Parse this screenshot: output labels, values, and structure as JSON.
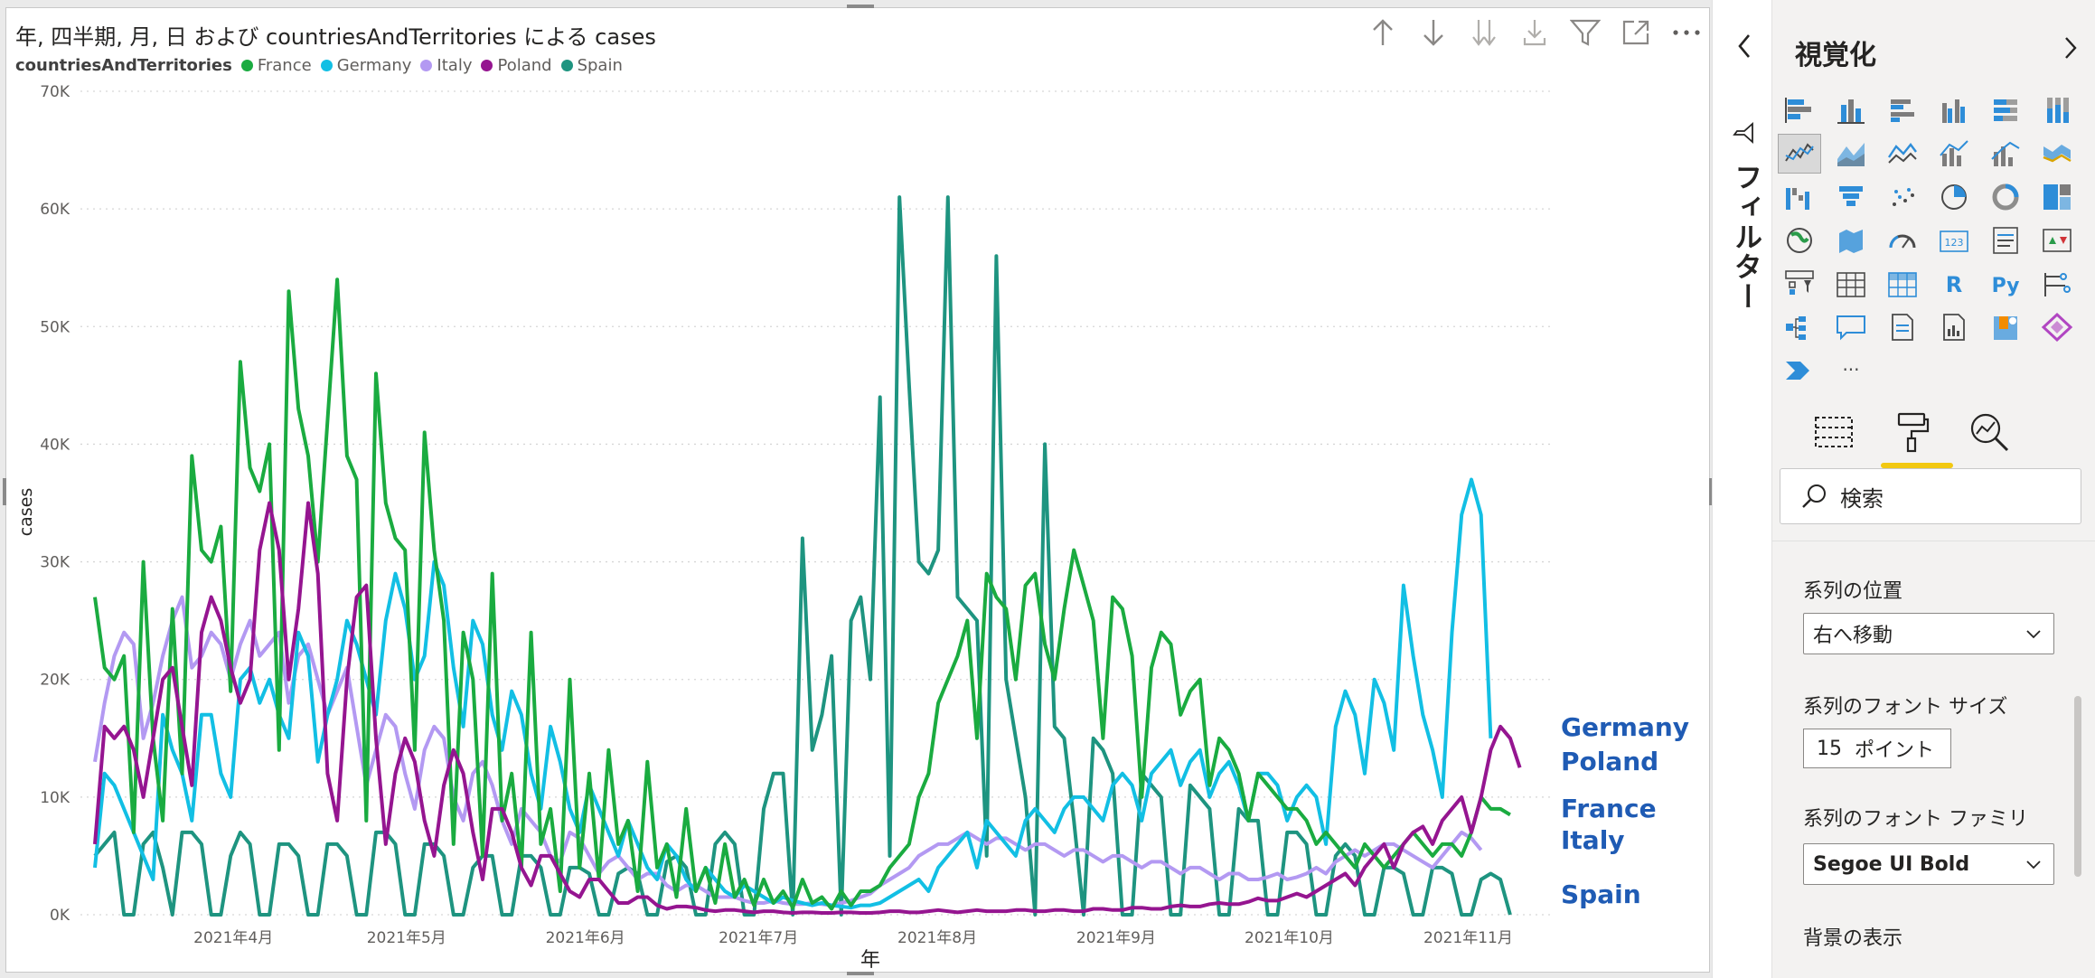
{
  "chart_data": {
    "type": "line",
    "title": "年, 四半期, 月, 日 および countriesAndTerritories による cases",
    "legend_title": "countriesAndTerritories",
    "xlabel": "年",
    "ylabel": "cases",
    "ylim": [
      0,
      70000
    ],
    "y_ticks": [
      "0K",
      "10K",
      "20K",
      "30K",
      "40K",
      "50K",
      "60K",
      "70K"
    ],
    "x_ticks": [
      "2021年4月",
      "2021年5月",
      "2021年6月",
      "2021年7月",
      "2021年8月",
      "2021年9月",
      "2021年10月",
      "2021年11月"
    ],
    "x_range": [
      "2021-03-08",
      "2021-11-13"
    ],
    "grid": true,
    "legend_position": "top-left",
    "series_labels_position": "right",
    "series": [
      {
        "name": "France",
        "color": "#1aab40",
        "x_start": "2021-03-08",
        "values": [
          27000,
          21000,
          20000,
          22000,
          7000,
          30000,
          15000,
          8000,
          26000,
          12000,
          39000,
          31000,
          30000,
          33000,
          19000,
          47000,
          38000,
          36000,
          40000,
          14000,
          53000,
          43000,
          39000,
          30000,
          42000,
          54000,
          39000,
          37000,
          8000,
          46000,
          35000,
          32000,
          31000,
          14000,
          41000,
          31000,
          25000,
          6000,
          24000,
          20000,
          5000,
          29000,
          8000,
          12000,
          4000,
          24000,
          6000,
          9000,
          2000,
          20000,
          4000,
          12000,
          3000,
          14000,
          6000,
          8000,
          2000,
          13000,
          4000,
          6000,
          1500,
          9000,
          2000,
          4000,
          1000,
          6000,
          1500,
          3000,
          800,
          3000,
          1000,
          2000,
          600,
          3000,
          1000,
          1500,
          500,
          2000,
          800,
          2000,
          2000,
          2500,
          4000,
          5000,
          6000,
          10000,
          12000,
          18000,
          20000,
          22000,
          25000,
          15000,
          29000,
          27000,
          26000,
          20000,
          28000,
          29000,
          23000,
          20000,
          26000,
          31000,
          28000,
          25000,
          15000,
          27000,
          26000,
          22000,
          10000,
          21000,
          24000,
          23000,
          17000,
          19000,
          20000,
          11000,
          15000,
          14000,
          12000,
          8000,
          12000,
          11000,
          10000,
          9000,
          9000,
          8000,
          6000,
          7000,
          6000,
          5000,
          4000,
          6000,
          5000,
          4000,
          5000,
          6000,
          7000,
          6000,
          5000,
          6000,
          6000,
          5000,
          7000,
          10000,
          9000,
          9000,
          8500
        ]
      },
      {
        "name": "Germany",
        "color": "#12bfe4",
        "x_start": "2021-03-08",
        "values": [
          4000,
          12000,
          11000,
          9000,
          7000,
          5000,
          3000,
          17000,
          14000,
          12000,
          8000,
          17000,
          17000,
          12000,
          10000,
          20000,
          21000,
          18000,
          20000,
          17000,
          15000,
          24000,
          22000,
          13000,
          17000,
          20000,
          25000,
          23000,
          20000,
          17000,
          25000,
          29000,
          26000,
          20000,
          22000,
          30000,
          28000,
          21000,
          16000,
          25000,
          23000,
          17000,
          14000,
          19000,
          17000,
          12000,
          9000,
          16000,
          13000,
          9000,
          7000,
          11000,
          9000,
          7000,
          5000,
          8000,
          6000,
          4000,
          3000,
          6000,
          5000,
          3000,
          2000,
          4000,
          3000,
          2000,
          1500,
          2500,
          2000,
          1500,
          1000,
          1500,
          1200,
          1000,
          800,
          1000,
          800,
          700,
          600,
          800,
          800,
          1000,
          1500,
          2000,
          2500,
          3000,
          2000,
          4000,
          5000,
          6000,
          7000,
          4000,
          8000,
          7000,
          6000,
          5000,
          8000,
          9000,
          8000,
          7000,
          9000,
          10000,
          10000,
          9000,
          8000,
          11000,
          12000,
          11000,
          8000,
          12000,
          13000,
          14000,
          11000,
          13000,
          14000,
          10000,
          12000,
          13000,
          11000,
          8000,
          12000,
          12000,
          11000,
          8000,
          10000,
          11000,
          10000,
          6000,
          16000,
          19000,
          17000,
          12000,
          20000,
          18000,
          14000,
          28000,
          22000,
          17000,
          14000,
          10000,
          24000,
          34000,
          37000,
          34000,
          15000
        ]
      },
      {
        "name": "Italy",
        "color": "#b399f2",
        "x_start": "2021-03-08",
        "values": [
          13000,
          18000,
          22000,
          24000,
          23000,
          15000,
          18000,
          22000,
          25000,
          27000,
          21000,
          22000,
          24000,
          23000,
          20000,
          23000,
          25000,
          22000,
          23000,
          24000,
          18000,
          22000,
          23000,
          20000,
          17000,
          19000,
          21000,
          16000,
          11000,
          14000,
          17000,
          16000,
          12000,
          9000,
          14000,
          16000,
          15000,
          10000,
          8000,
          12000,
          13000,
          11000,
          8000,
          6000,
          9000,
          8000,
          7000,
          5000,
          4500,
          7000,
          6500,
          5000,
          3500,
          4500,
          5000,
          4000,
          3000,
          3500,
          3500,
          2500,
          2000,
          2500,
          2500,
          2000,
          1500,
          1500,
          1500,
          1200,
          1000,
          1000,
          1200,
          1000,
          900,
          900,
          1000,
          900,
          800,
          1000,
          1200,
          1500,
          1800,
          2500,
          3000,
          3500,
          4000,
          5000,
          5500,
          6000,
          6000,
          6500,
          7000,
          6500,
          6000,
          6500,
          6500,
          6000,
          5500,
          6000,
          6000,
          5500,
          5000,
          5500,
          5500,
          5000,
          4500,
          5000,
          5000,
          4500,
          4000,
          4500,
          4500,
          4000,
          3500,
          4000,
          4000,
          3500,
          3000,
          3500,
          3500,
          3000,
          3000,
          3200,
          3500,
          3000,
          3200,
          3500,
          4000,
          3500,
          4500,
          5000,
          5500,
          5000,
          5500,
          6000,
          6000,
          5500,
          5000,
          4500,
          4000,
          5000,
          6000,
          7000,
          6500,
          5500
        ]
      },
      {
        "name": "Poland",
        "color": "#951590",
        "x_start": "2021-03-08",
        "values": [
          6000,
          16000,
          15000,
          16000,
          14000,
          10000,
          15000,
          20000,
          21000,
          16000,
          11000,
          24000,
          27000,
          25000,
          21000,
          18000,
          20000,
          31000,
          35000,
          31000,
          20000,
          26000,
          35000,
          29000,
          12000,
          8000,
          20000,
          27000,
          28000,
          15000,
          6000,
          12000,
          15000,
          13000,
          8000,
          5000,
          11000,
          14000,
          12000,
          7000,
          3000,
          9000,
          9000,
          7000,
          4000,
          2500,
          5000,
          5000,
          3500,
          2000,
          1500,
          3000,
          3000,
          2000,
          1000,
          1000,
          1500,
          1500,
          800,
          500,
          700,
          700,
          600,
          400,
          300,
          400,
          400,
          300,
          200,
          300,
          300,
          200,
          150,
          200,
          200,
          150,
          150,
          200,
          200,
          150,
          150,
          200,
          300,
          300,
          200,
          200,
          300,
          400,
          300,
          200,
          300,
          400,
          300,
          300,
          300,
          400,
          400,
          300,
          300,
          400,
          400,
          300,
          300,
          500,
          500,
          400,
          400,
          600,
          600,
          500,
          500,
          700,
          800,
          700,
          700,
          900,
          1000,
          900,
          900,
          1100,
          1400,
          1200,
          1200,
          1500,
          1800,
          1500,
          2000,
          2500,
          3000,
          3500,
          2500,
          4000,
          5000,
          6000,
          4000,
          6000,
          7000,
          7500,
          6000,
          8000,
          9000,
          10000,
          7000,
          10000,
          14000,
          16000,
          15000,
          12500
        ]
      },
      {
        "name": "Spain",
        "color": "#1e9480",
        "x_start": "2021-03-08",
        "values": [
          5000,
          6000,
          7000,
          0,
          0,
          6000,
          7000,
          4000,
          0,
          7000,
          7000,
          6000,
          0,
          0,
          5000,
          7000,
          6000,
          0,
          0,
          6000,
          6000,
          5000,
          0,
          0,
          6000,
          6000,
          5000,
          0,
          0,
          7000,
          7000,
          6000,
          0,
          0,
          6000,
          6000,
          5000,
          0,
          0,
          4000,
          5000,
          5000,
          0,
          0,
          5000,
          5000,
          4000,
          0,
          0,
          4000,
          4000,
          3500,
          0,
          0,
          3500,
          4000,
          3500,
          0,
          0,
          4500,
          5000,
          4000,
          0,
          0,
          6000,
          7000,
          6000,
          0,
          0,
          9000,
          12000,
          12000,
          0,
          32000,
          14000,
          17000,
          22000,
          0,
          25000,
          27000,
          20000,
          44000,
          5000,
          61000,
          45000,
          30000,
          29000,
          31000,
          61000,
          27000,
          26000,
          25000,
          5000,
          56000,
          20000,
          15000,
          10000,
          0,
          40000,
          16000,
          15000,
          8000,
          0,
          15000,
          14000,
          12000,
          0,
          0,
          12000,
          11000,
          10000,
          0,
          0,
          11000,
          10000,
          9000,
          0,
          0,
          9000,
          8000,
          8000,
          0,
          0,
          7000,
          7000,
          6000,
          0,
          0,
          5000,
          6000,
          5000,
          0,
          0,
          4000,
          4000,
          3500,
          0,
          0,
          4000,
          4000,
          3500,
          0,
          0,
          3000,
          3500,
          3000,
          0
        ]
      }
    ]
  },
  "toolbar": {
    "icons": [
      "arrow-up-icon",
      "arrow-down-icon",
      "double-arrow-down-icon",
      "expand-hierarchy-icon",
      "filter-icon",
      "focus-mode-icon",
      "more-options-icon"
    ]
  },
  "filter_pane": {
    "label": "フィルター",
    "collapse_icon": "chevron-left-icon"
  },
  "viz_pane": {
    "title": "視覚化",
    "search_placeholder": "検索",
    "selected_visual": "line-chart-icon",
    "series_position_label": "系列の位置",
    "series_position_value": "右へ移動",
    "font_size_label": "系列のフォント サイズ",
    "font_size_value": "15",
    "font_size_unit": "ポイント",
    "font_family_label": "系列のフォント ファミリ",
    "font_family_value": "Segoe UI Bold",
    "background_label": "背景の表示",
    "more_visuals": "···",
    "r_visual_label": "R",
    "py_visual_label": "Py"
  }
}
